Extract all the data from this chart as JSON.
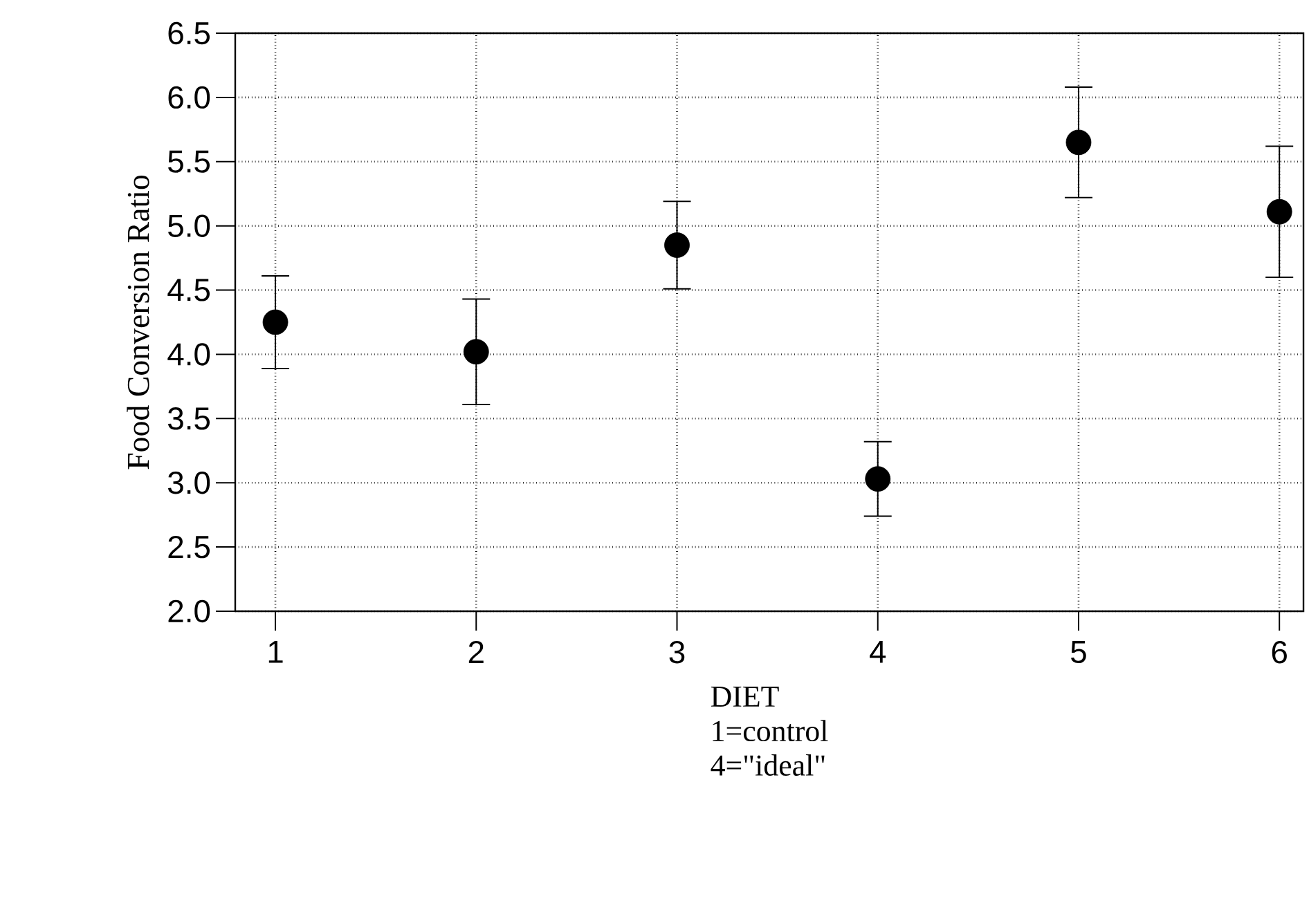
{
  "chart_data": {
    "type": "scatter",
    "xlabel": "DIET",
    "ylabel": "Food Conversion Ratio",
    "annotations": [
      "1=control",
      "4=\"ideal\""
    ],
    "x": [
      1,
      2,
      3,
      4,
      5,
      6
    ],
    "values": [
      4.25,
      4.02,
      4.85,
      3.03,
      5.65,
      5.11
    ],
    "errors": [
      0.36,
      0.41,
      0.34,
      0.29,
      0.43,
      0.51
    ],
    "color": "#000000",
    "grid": true,
    "xlim": [
      0.8,
      6.12
    ],
    "ylim": [
      2.0,
      6.5
    ],
    "xticks": [
      1,
      2,
      3,
      4,
      5,
      6
    ],
    "yticks": [
      {
        "value": 2.0,
        "label": "2.0"
      },
      {
        "value": 2.5,
        "label": "2.5"
      },
      {
        "value": 3.0,
        "label": "3.0"
      },
      {
        "value": 3.5,
        "label": "3.5"
      },
      {
        "value": 4.0,
        "label": "4.0"
      },
      {
        "value": 4.5,
        "label": "4.5"
      },
      {
        "value": 5.0,
        "label": "5.0"
      },
      {
        "value": 5.5,
        "label": "5.5"
      },
      {
        "value": 6.0,
        "label": "6.0"
      },
      {
        "value": 6.5,
        "label": "6.5"
      }
    ]
  }
}
